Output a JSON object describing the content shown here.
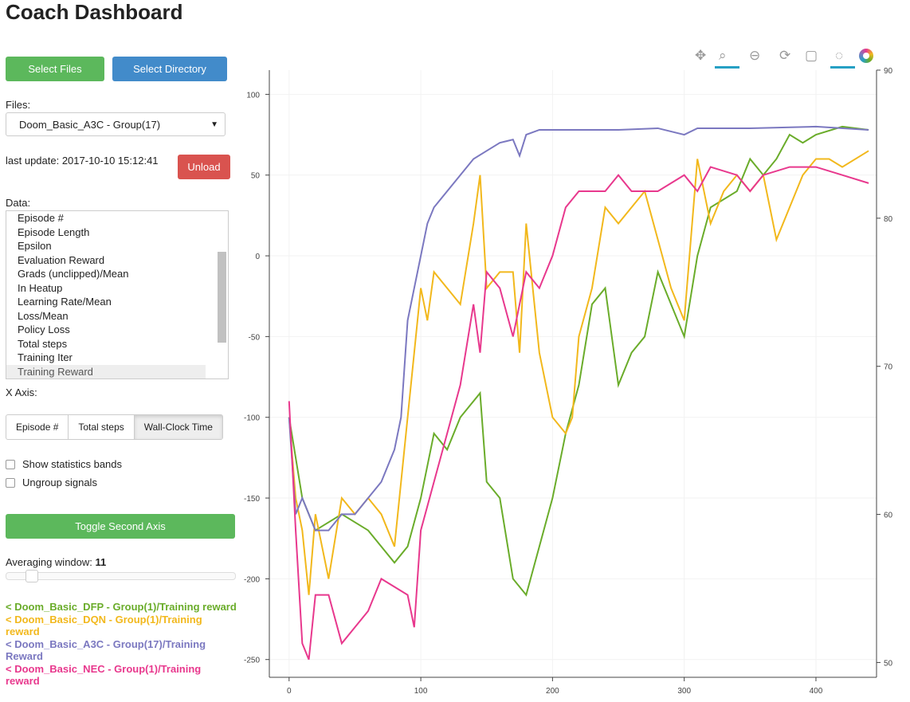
{
  "title": "Coach Dashboard",
  "buttons": {
    "select_files": "Select Files",
    "select_directory": "Select Directory",
    "unload": "Unload",
    "toggle_axis": "Toggle Second Axis"
  },
  "files": {
    "label": "Files:",
    "selected": "Doom_Basic_A3C - Group(17)"
  },
  "last_update": "last update: 2017-10-10 15:12:41",
  "data": {
    "label": "Data:",
    "items": [
      "Episode #",
      "Episode Length",
      "Epsilon",
      "Evaluation Reward",
      "Grads (unclipped)/Mean",
      "In Heatup",
      "Learning Rate/Mean",
      "Loss/Mean",
      "Policy Loss",
      "Total steps",
      "Training Iter",
      "Training Reward"
    ],
    "selected": "Training Reward"
  },
  "x_axis": {
    "label": "X Axis:",
    "options": [
      "Episode #",
      "Total steps",
      "Wall-Clock Time"
    ],
    "selected": "Wall-Clock Time"
  },
  "options": {
    "stat_bands": "Show statistics bands",
    "ungroup": "Ungroup signals",
    "stat_bands_checked": false,
    "ungroup_checked": false
  },
  "averaging": {
    "label": "Averaging window:",
    "value": "11"
  },
  "legend": [
    {
      "text": "< Doom_Basic_DFP - Group(1)/Training reward",
      "color": "#6aac2a"
    },
    {
      "text": "< Doom_Basic_DQN - Group(1)/Training reward",
      "color": "#f2b81c"
    },
    {
      "text": "< Doom_Basic_A3C - Group(17)/Training Reward",
      "color": "#7b78c0"
    },
    {
      "text": "< Doom_Basic_NEC - Group(1)/Training reward",
      "color": "#e8388d"
    }
  ],
  "toolbar": [
    "pan-icon",
    "box-zoom-icon",
    "wheel-zoom-icon",
    "reset-icon",
    "save-icon",
    "hover-icon",
    "bokeh-logo-icon"
  ],
  "chart_data": {
    "type": "line",
    "xlim": [
      -15,
      446
    ],
    "ylim": [
      -261,
      115
    ],
    "y2lim": [
      49,
      90
    ],
    "xticks": [
      0,
      100,
      200,
      300,
      400
    ],
    "yticks": [
      100,
      50,
      0,
      -50,
      -100,
      -150,
      -200,
      -250
    ],
    "y2ticks": [
      90,
      80,
      70,
      60,
      50
    ],
    "series": [
      {
        "name": "< Doom_Basic_DFP - Group(1)/Training reward",
        "color": "#6aac2a",
        "x": [
          0,
          10,
          20,
          40,
          60,
          80,
          90,
          100,
          110,
          120,
          130,
          140,
          145,
          150,
          160,
          170,
          180,
          190,
          200,
          210,
          220,
          230,
          240,
          250,
          260,
          270,
          280,
          290,
          300,
          310,
          320,
          330,
          340,
          350,
          360,
          370,
          380,
          390,
          400,
          420,
          440
        ],
        "y": [
          -100,
          -150,
          -170,
          -160,
          -170,
          -190,
          -180,
          -150,
          -110,
          -120,
          -100,
          -90,
          -85,
          -140,
          -150,
          -200,
          -210,
          -180,
          -150,
          -110,
          -80,
          -30,
          -20,
          -80,
          -60,
          -50,
          -10,
          -30,
          -50,
          0,
          30,
          35,
          40,
          60,
          50,
          60,
          75,
          70,
          75,
          80,
          78
        ]
      },
      {
        "name": "< Doom_Basic_DQN - Group(1)/Training reward",
        "color": "#f2b81c",
        "x": [
          0,
          5,
          10,
          15,
          20,
          25,
          30,
          40,
          50,
          60,
          70,
          80,
          90,
          95,
          100,
          105,
          110,
          120,
          130,
          140,
          145,
          150,
          160,
          170,
          175,
          180,
          185,
          190,
          200,
          210,
          215,
          220,
          230,
          240,
          250,
          260,
          270,
          280,
          290,
          300,
          310,
          320,
          330,
          340,
          350,
          360,
          370,
          380,
          390,
          400,
          410,
          420,
          440
        ],
        "y": [
          -100,
          -150,
          -170,
          -210,
          -160,
          -180,
          -200,
          -150,
          -160,
          -150,
          -160,
          -180,
          -100,
          -60,
          -20,
          -40,
          -10,
          -20,
          -30,
          20,
          50,
          -20,
          -10,
          -10,
          -60,
          20,
          -20,
          -60,
          -100,
          -110,
          -100,
          -50,
          -20,
          30,
          20,
          30,
          40,
          10,
          -20,
          -40,
          60,
          20,
          40,
          50,
          40,
          50,
          10,
          30,
          50,
          60,
          60,
          55,
          65
        ]
      },
      {
        "name": "< Doom_Basic_A3C - Group(17)/Training Reward",
        "color": "#7b78c0",
        "x": [
          0,
          5,
          10,
          20,
          30,
          40,
          50,
          60,
          70,
          80,
          85,
          90,
          95,
          100,
          105,
          110,
          120,
          130,
          140,
          150,
          160,
          170,
          175,
          180,
          190,
          200,
          220,
          250,
          280,
          300,
          310,
          350,
          400,
          440
        ],
        "y": [
          -100,
          -160,
          -150,
          -170,
          -170,
          -160,
          -160,
          -150,
          -140,
          -120,
          -100,
          -40,
          -20,
          0,
          20,
          30,
          40,
          50,
          60,
          65,
          70,
          72,
          62,
          75,
          78,
          78,
          78,
          78,
          79,
          75,
          79,
          79,
          80,
          78
        ]
      },
      {
        "name": "< Doom_Basic_NEC - Group(1)/Training reward",
        "color": "#e8388d",
        "x": [
          0,
          5,
          10,
          15,
          20,
          30,
          40,
          50,
          60,
          70,
          80,
          90,
          95,
          100,
          110,
          120,
          130,
          140,
          145,
          150,
          160,
          170,
          180,
          190,
          200,
          210,
          220,
          240,
          250,
          260,
          280,
          300,
          310,
          320,
          340,
          350,
          360,
          380,
          400,
          420,
          440
        ],
        "y": [
          -90,
          -170,
          -240,
          -250,
          -210,
          -210,
          -240,
          -230,
          -220,
          -200,
          -205,
          -210,
          -230,
          -170,
          -140,
          -110,
          -80,
          -30,
          -60,
          -10,
          -20,
          -50,
          -10,
          -20,
          0,
          30,
          40,
          40,
          50,
          40,
          40,
          50,
          40,
          55,
          50,
          40,
          50,
          55,
          55,
          50,
          45
        ]
      }
    ]
  }
}
